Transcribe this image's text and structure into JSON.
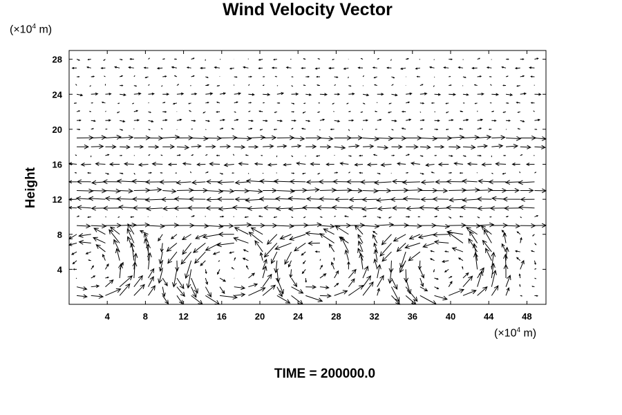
{
  "chart_data": {
    "type": "vector_field",
    "title": "Wind Velocity Vector",
    "ylabel": "Height",
    "x_unit_prefix": "(×10",
    "x_unit_exp": "4",
    "x_unit_suffix": " m)",
    "y_unit_prefix": "(×10",
    "y_unit_exp": "4",
    "y_unit_suffix": " m)",
    "xlim": [
      0,
      50
    ],
    "ylim": [
      0,
      29
    ],
    "xticks": [
      4,
      8,
      12,
      16,
      20,
      24,
      28,
      32,
      36,
      40,
      44,
      48
    ],
    "yticks": [
      4,
      8,
      12,
      16,
      20,
      24,
      28
    ],
    "grid": false,
    "vector_rows": [
      {
        "y": 1,
        "u": 0.0,
        "note": "near-surface circulation cells"
      },
      {
        "y": 9,
        "u": 1.0
      },
      {
        "y": 11,
        "u": -1.0
      },
      {
        "y": 12,
        "u": -1.0
      },
      {
        "y": 13,
        "u": 1.0
      },
      {
        "y": 14,
        "u": -1.0
      },
      {
        "y": 16,
        "u": -0.6
      },
      {
        "y": 18,
        "u": 0.7
      },
      {
        "y": 19,
        "u": 1.0
      },
      {
        "y": 21,
        "u": 0.3
      },
      {
        "y": 24,
        "u": 0.4
      },
      {
        "y": 27,
        "u": -0.3
      }
    ],
    "cell_centers_x": [
      2,
      17,
      26,
      39
    ],
    "cell_top_y": 8
  },
  "footer": {
    "time_label": "TIME = 200000.0"
  }
}
